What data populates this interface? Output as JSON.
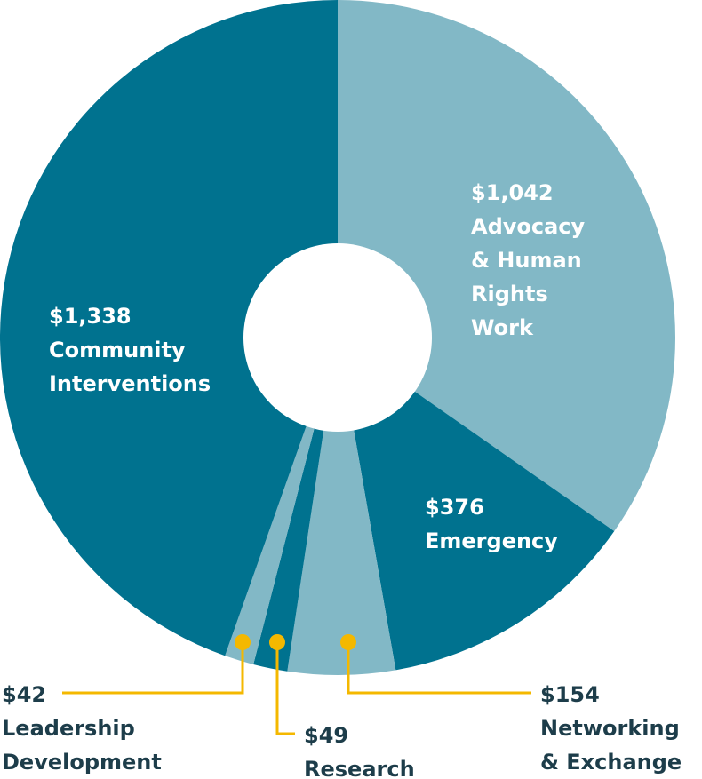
{
  "chart_data": {
    "type": "pie",
    "donut": true,
    "colors": {
      "dark": "#00728f",
      "light": "#82b8c6",
      "accent": "#f4b800",
      "text_dark": "#1d3d4a"
    },
    "slices": [
      {
        "value_label": "$1,042",
        "name_lines": [
          "Advocacy",
          "& Human",
          "Rights",
          "Work"
        ],
        "value": 1042,
        "color": "light",
        "label_pos": "inside"
      },
      {
        "value_label": "$376",
        "name_lines": [
          "Emergency"
        ],
        "value": 376,
        "color": "dark",
        "label_pos": "inside"
      },
      {
        "value_label": "$154",
        "name_lines": [
          "Networking",
          "& Exchange"
        ],
        "value": 154,
        "color": "light",
        "label_pos": "outside-right"
      },
      {
        "value_label": "$49",
        "name_lines": [
          "Research"
        ],
        "value": 49,
        "color": "dark",
        "label_pos": "outside-bottom"
      },
      {
        "value_label": "$42",
        "name_lines": [
          "Leadership",
          "Development"
        ],
        "value": 42,
        "color": "light",
        "label_pos": "outside-left"
      },
      {
        "value_label": "$1,338",
        "name_lines": [
          "Community",
          "Interventions"
        ],
        "value": 1338,
        "color": "dark",
        "label_pos": "inside"
      }
    ]
  }
}
